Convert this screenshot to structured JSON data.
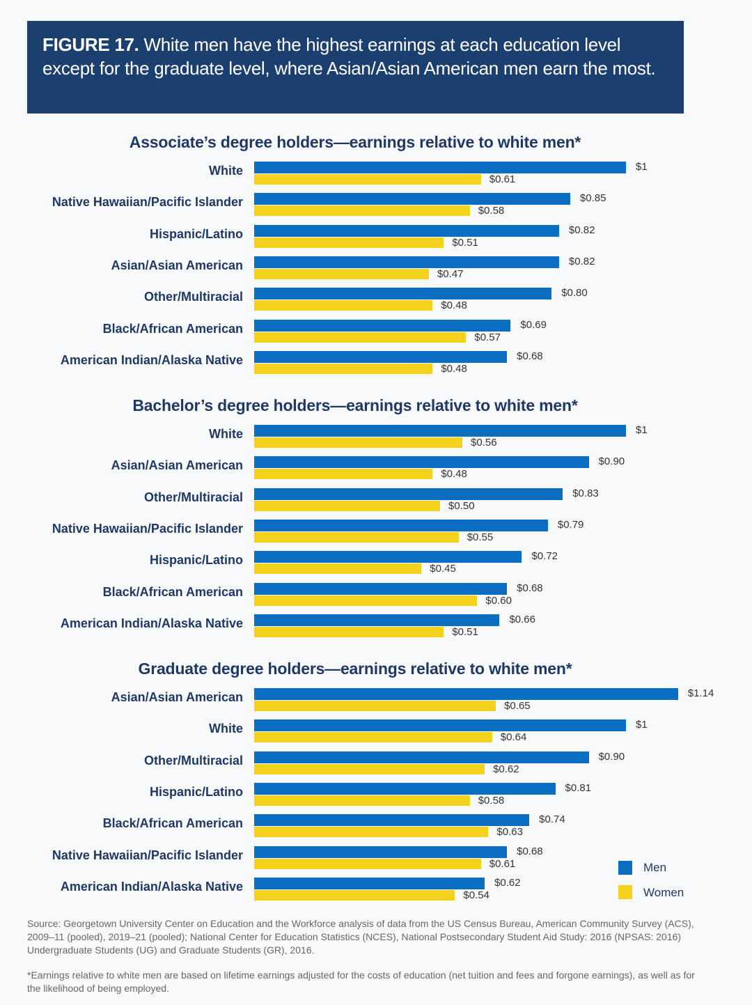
{
  "header": {
    "figure_label": "FIGURE 17.",
    "title": "White men have the highest earnings at each education level except for the graduate level, where Asian/Asian American men earn the most."
  },
  "colors": {
    "men": "#0a6fc2",
    "women": "#f2d21b",
    "header_bg": "#1b3f6e"
  },
  "legend": {
    "men": "Men",
    "women": "Women"
  },
  "chart_data": [
    {
      "type": "bar",
      "orientation": "horizontal",
      "title": "Associate’s degree holders—earnings relative to white men*",
      "categories": [
        "White",
        "Native Hawaiian/Pacific Islander",
        "Hispanic/Latino",
        "Asian/Asian American",
        "Other/Multiracial",
        "Black/African American",
        "American Indian/Alaska Native"
      ],
      "series": [
        {
          "name": "Men",
          "values": [
            1,
            0.85,
            0.82,
            0.82,
            0.8,
            0.69,
            0.68
          ],
          "labels": [
            "$1",
            "$0.85",
            "$0.82",
            "$0.82",
            "$0.80",
            "$0.69",
            "$0.68"
          ]
        },
        {
          "name": "Women",
          "values": [
            0.61,
            0.58,
            0.51,
            0.47,
            0.48,
            0.57,
            0.48
          ],
          "labels": [
            "$0.61",
            "$0.58",
            "$0.51",
            "$0.47",
            "$0.48",
            "$0.57",
            "$0.48"
          ]
        }
      ]
    },
    {
      "type": "bar",
      "orientation": "horizontal",
      "title": "Bachelor’s degree holders—earnings relative to white men*",
      "categories": [
        "White",
        "Asian/Asian American",
        "Other/Multiracial",
        "Native Hawaiian/Pacific Islander",
        "Hispanic/Latino",
        "Black/African American",
        "American Indian/Alaska Native"
      ],
      "series": [
        {
          "name": "Men",
          "values": [
            1,
            0.9,
            0.83,
            0.79,
            0.72,
            0.68,
            0.66
          ],
          "labels": [
            "$1",
            "$0.90",
            "$0.83",
            "$0.79",
            "$0.72",
            "$0.68",
            "$0.66"
          ]
        },
        {
          "name": "Women",
          "values": [
            0.56,
            0.48,
            0.5,
            0.55,
            0.45,
            0.6,
            0.51
          ],
          "labels": [
            "$0.56",
            "$0.48",
            "$0.50",
            "$0.55",
            "$0.45",
            "$0.60",
            "$0.51"
          ]
        }
      ]
    },
    {
      "type": "bar",
      "orientation": "horizontal",
      "title": "Graduate degree holders—earnings relative to white men*",
      "categories": [
        "Asian/Asian American",
        "White",
        "Other/Multiracial",
        "Hispanic/Latino",
        "Black/African American",
        "Native Hawaiian/Pacific Islander",
        "American Indian/Alaska Native"
      ],
      "series": [
        {
          "name": "Men",
          "values": [
            1.14,
            1,
            0.9,
            0.81,
            0.74,
            0.68,
            0.62
          ],
          "labels": [
            "$1.14",
            "$1",
            "$0.90",
            "$0.81",
            "$0.74",
            "$0.68",
            "$0.62"
          ]
        },
        {
          "name": "Women",
          "values": [
            0.65,
            0.64,
            0.62,
            0.58,
            0.63,
            0.61,
            0.54
          ],
          "labels": [
            "$0.65",
            "$0.64",
            "$0.62",
            "$0.58",
            "$0.63",
            "$0.61",
            "$0.54"
          ]
        }
      ]
    }
  ],
  "footer": {
    "source": "Source: Georgetown University Center on Education and the Workforce analysis of data from the US Census Bureau, American Community Survey (ACS), 2009–11 (pooled), 2019–21 (pooled); National Center for Education Statistics (NCES), National Postsecondary Student Aid Study: 2016 (NPSAS: 2016) Undergraduate Students (UG) and Graduate Students (GR), 2016.",
    "note": "*Earnings relative to white men are based on lifetime earnings adjusted for the costs of education (net tuition and fees and forgone earnings), as well as for the likelihood of being employed."
  }
}
